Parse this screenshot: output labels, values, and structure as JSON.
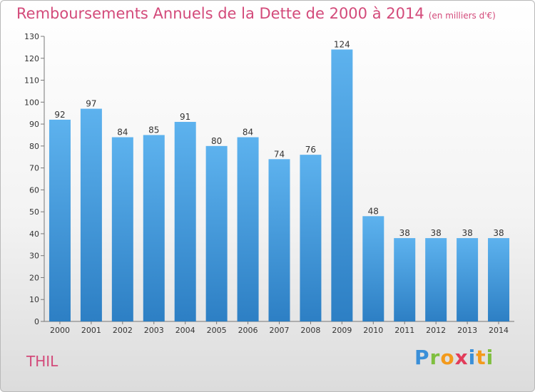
{
  "chart_data": {
    "type": "bar",
    "title": "Remboursements Annuels de la Dette de 2000 à 2014",
    "subtitle": "(en milliers d'€)",
    "categories": [
      "2000",
      "2001",
      "2002",
      "2003",
      "2004",
      "2005",
      "2006",
      "2007",
      "2008",
      "2009",
      "2010",
      "2011",
      "2012",
      "2013",
      "2014"
    ],
    "values": [
      92,
      97,
      84,
      85,
      91,
      80,
      84,
      74,
      76,
      124,
      48,
      38,
      38,
      38,
      38
    ],
    "ylim": [
      0,
      130
    ],
    "yticks": [
      0,
      10,
      20,
      30,
      40,
      50,
      60,
      70,
      80,
      90,
      100,
      110,
      120,
      130
    ],
    "xlabel": "",
    "ylabel": "",
    "grid": false,
    "bar_color": "#4ea3e6"
  },
  "footer": {
    "town": "THIL",
    "logo": "Proxiti"
  }
}
